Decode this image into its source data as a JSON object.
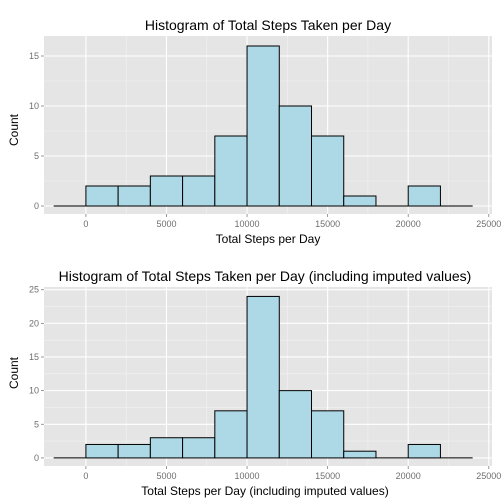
{
  "colors": {
    "panel_bg": "#e5e5e5",
    "grid_major": "#ffffff",
    "grid_minor": "#f2f2f2",
    "bar_fill": "#add8e6",
    "bar_stroke": "#000000",
    "tick_text": "#6e6e6e"
  },
  "chart_data": [
    {
      "type": "bar",
      "subtype": "histogram",
      "title": "Histogram of Total Steps Taken per Day",
      "xlabel": "Total Steps per Day",
      "ylabel": "Count",
      "xlim": [
        -2600,
        25200
      ],
      "ylim": [
        -0.8,
        17.0
      ],
      "xticks": [
        0,
        5000,
        10000,
        15000,
        20000,
        25000
      ],
      "yticks": [
        0,
        5,
        10,
        15
      ],
      "bin_start": -2000,
      "bin_width": 2000,
      "counts": [
        0,
        2,
        2,
        3,
        3,
        7,
        16,
        10,
        7,
        1,
        0,
        2,
        0
      ],
      "grid": true
    },
    {
      "type": "bar",
      "subtype": "histogram",
      "title": "Histogram of Total Steps Taken per Day (including imputed values)",
      "xlabel": "Total Steps per Day (including imputed values)",
      "ylabel": "Count",
      "xlim": [
        -2600,
        25200
      ],
      "ylim": [
        -1.2,
        25.4
      ],
      "xticks": [
        0,
        5000,
        10000,
        15000,
        20000,
        25000
      ],
      "yticks": [
        0,
        5,
        10,
        15,
        20,
        25
      ],
      "bin_start": -2000,
      "bin_width": 2000,
      "counts": [
        0,
        2,
        2,
        3,
        3,
        7,
        24,
        10,
        7,
        1,
        0,
        2,
        0
      ],
      "grid": true
    }
  ]
}
